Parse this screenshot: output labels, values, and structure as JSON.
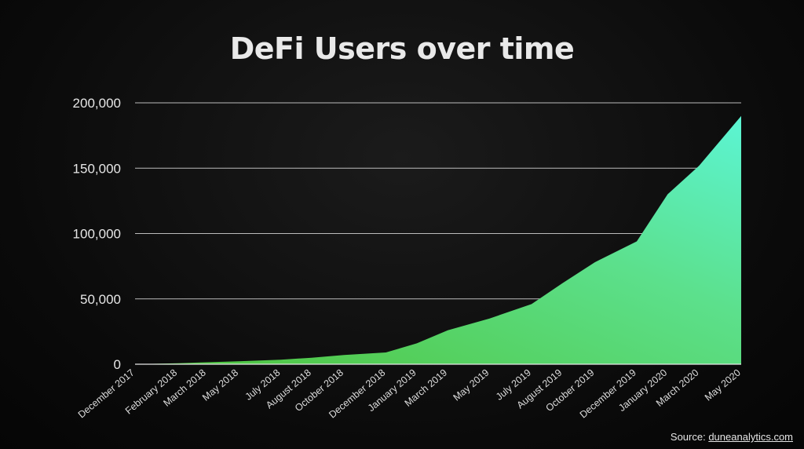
{
  "chart_data": {
    "type": "area",
    "title": "DeFi Users over time",
    "xlabel": "",
    "ylabel": "",
    "ylim": [
      0,
      200000
    ],
    "yticks": [
      0,
      50000,
      100000,
      150000,
      200000
    ],
    "ytick_labels": [
      "0",
      "50,000",
      "100,000",
      "150,000",
      "200,000"
    ],
    "xtick_labels": [
      "December 2017",
      "February 2018",
      "March 2018",
      "May 2018",
      "July 2018",
      "August 2018",
      "October 2018",
      "December 2018",
      "January 2019",
      "March 2019",
      "May 2019",
      "July 2019",
      "August 2019",
      "October 2019",
      "December 2019",
      "January 2020",
      "March 2020",
      "May 2020"
    ],
    "grid": true,
    "legend": "none",
    "series": [
      {
        "x": [
          "2017-12-01",
          "2018-02-01",
          "2018-03-15",
          "2018-05-01",
          "2018-07-01",
          "2018-08-15",
          "2018-10-01",
          "2018-12-01",
          "2019-01-15",
          "2019-03-01",
          "2019-05-01",
          "2019-07-01",
          "2019-08-15",
          "2019-10-01",
          "2019-12-01",
          "2020-01-15",
          "2020-03-01",
          "2020-05-01"
        ],
        "values": [
          0,
          800,
          1500,
          2200,
          3500,
          5000,
          7000,
          9000,
          16000,
          26000,
          35000,
          46000,
          62000,
          78000,
          94000,
          130000,
          152000,
          190000
        ],
        "color": "#5ee1a5"
      }
    ],
    "fill_colors": {
      "top": "#5cf5d4",
      "middle": "#5ce08c",
      "bottom": "#4fc43c"
    },
    "grid_color": "#d9d9d9",
    "axis_color": "#e6e6e6"
  },
  "source": {
    "prefix": "Source: ",
    "link": "duneanalytics.com"
  }
}
